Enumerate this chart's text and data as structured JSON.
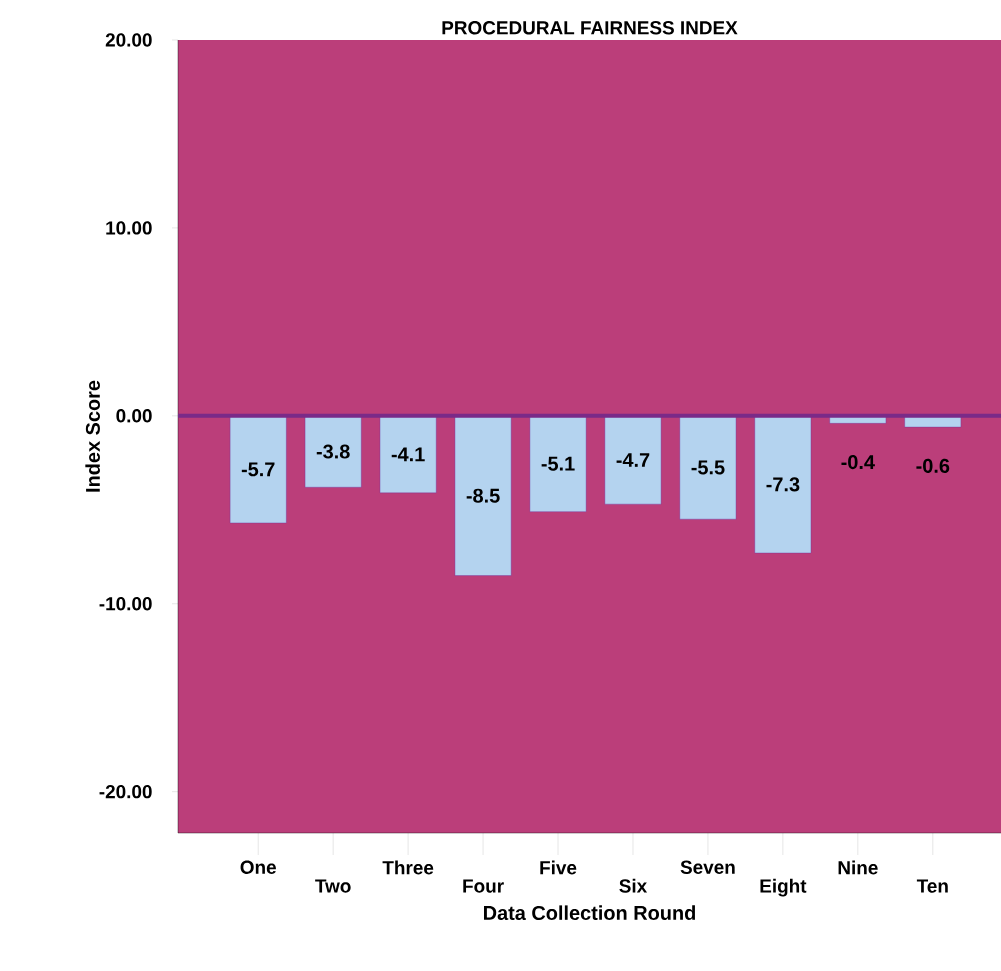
{
  "chart_data": {
    "type": "bar",
    "title": "PROCEDURAL FAIRNESS INDEX",
    "xlabel": "Data Collection Round",
    "ylabel": "Index Score",
    "categories": [
      "One",
      "Two",
      "Three",
      "Four",
      "Five",
      "Six",
      "Seven",
      "Eight",
      "Nine",
      "Ten"
    ],
    "values": [
      -5.7,
      -3.8,
      -4.1,
      -8.5,
      -5.1,
      -4.7,
      -5.5,
      -7.3,
      -0.4,
      -0.6
    ],
    "color": "#b4d3ef",
    "data_labels": true,
    "ylim": [
      -22.2,
      20
    ],
    "yticks": [
      {
        "value": -20,
        "label": "-20.00"
      },
      {
        "value": -10,
        "label": "-10.00"
      },
      {
        "value": 0,
        "label": "0.00"
      },
      {
        "value": 10,
        "label": "10.00"
      },
      {
        "value": 20,
        "label": "20.00"
      }
    ],
    "ref_lines": [
      {
        "axis": "y",
        "value": 0,
        "color": "#7a2a88"
      }
    ],
    "grid": false
  }
}
